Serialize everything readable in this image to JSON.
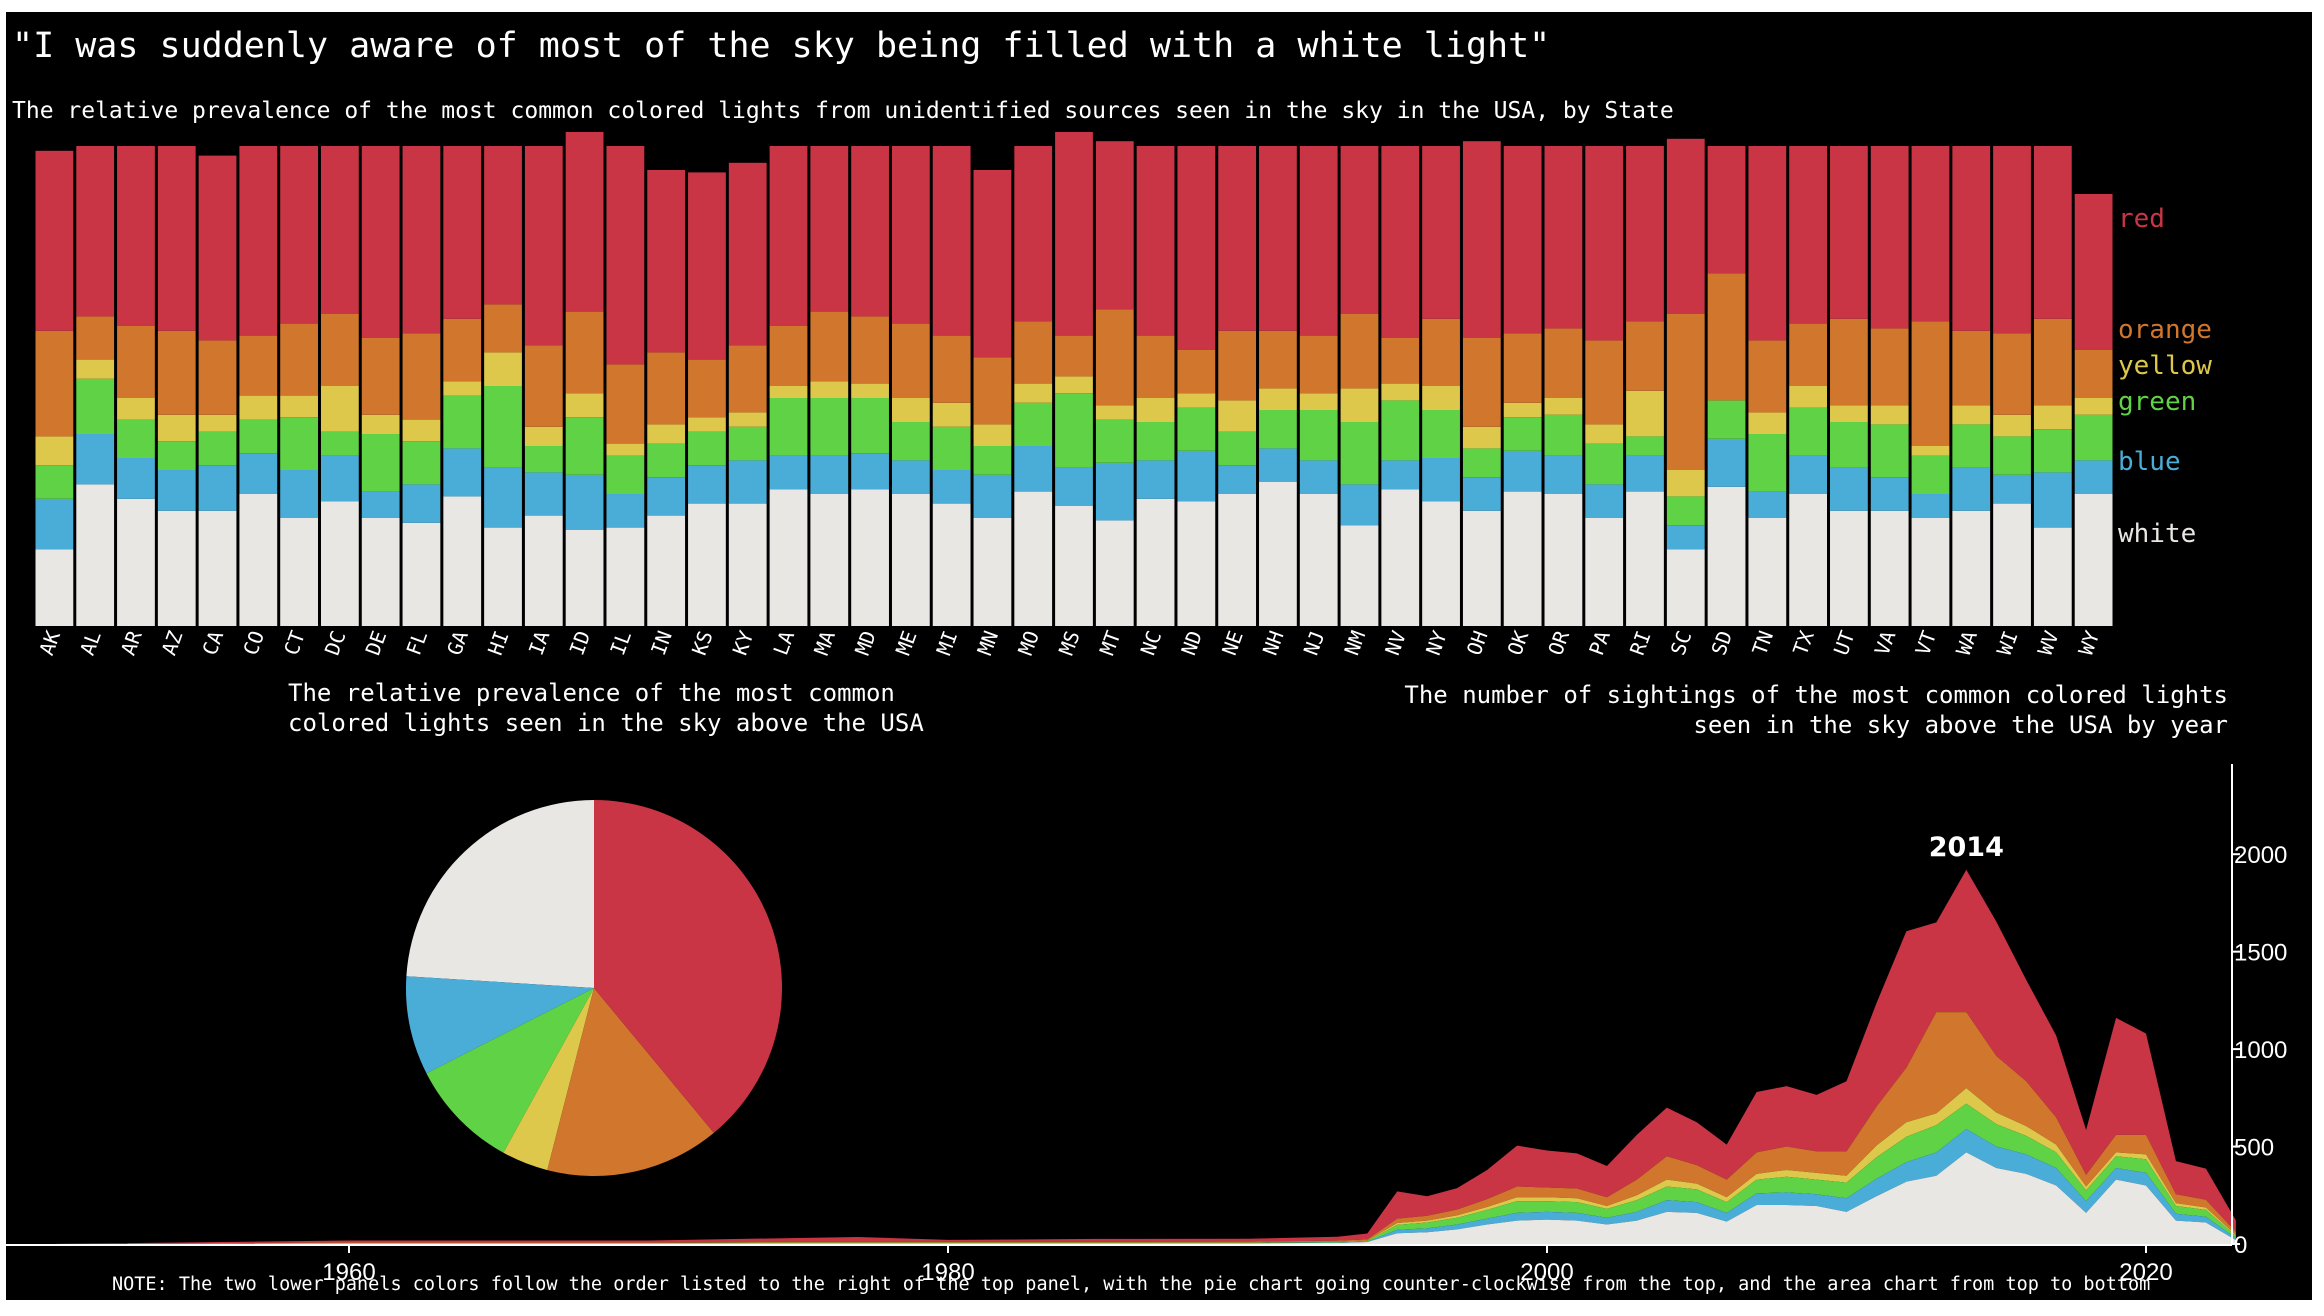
{
  "title": "\"I was suddenly aware of most of the sky being filled with a white light\"",
  "subtitle": "The relative prevalence of the most common colored lights from unidentified sources seen in the sky in the USA, by State",
  "pie_title_lines": [
    "The relative prevalence of the most common",
    "colored lights seen in the sky above the USA"
  ],
  "area_title_lines": [
    "The number of sightings of the most common colored lights",
    "seen in the sky above the USA by year"
  ],
  "note": "NOTE: The two lower panels colors follow the order listed to the right of the top panel, with the pie chart going counter-clockwise from the top, and the area chart from top to bottom",
  "colors": {
    "red": "#c93545",
    "orange": "#d0762d",
    "yellow": "#ddc84b",
    "green": "#5fd345",
    "blue": "#4aadd8",
    "white": "#e9e7e3"
  },
  "chart_data": [
    {
      "type": "bar",
      "stacked": "100%",
      "categories": [
        "AK",
        "AL",
        "AR",
        "AZ",
        "CA",
        "CO",
        "CT",
        "DC",
        "DE",
        "FL",
        "GA",
        "HI",
        "IA",
        "ID",
        "IL",
        "IN",
        "KS",
        "KY",
        "LA",
        "MA",
        "MD",
        "ME",
        "MI",
        "MN",
        "MO",
        "MS",
        "MT",
        "NC",
        "ND",
        "NE",
        "NH",
        "NJ",
        "NM",
        "NV",
        "NY",
        "OH",
        "OK",
        "OR",
        "PA",
        "RI",
        "SC",
        "SD",
        "TN",
        "TX",
        "UT",
        "VA",
        "VT",
        "WA",
        "WI",
        "WV",
        "WY"
      ],
      "series": [
        {
          "name": "red",
          "values": [
            37.5,
            35.5,
            37.5,
            38.5,
            38.5,
            39.5,
            37.0,
            35.0,
            40.0,
            39.0,
            36.0,
            33.0,
            41.5,
            37.5,
            45.5,
            38.0,
            39.0,
            38.0,
            37.5,
            34.5,
            35.5,
            37.0,
            39.5,
            39.0,
            36.5,
            43.5,
            35.0,
            39.5,
            42.5,
            38.5,
            38.5,
            39.5,
            35.0,
            40.0,
            36.0,
            41.0,
            39.0,
            38.0,
            40.5,
            36.5,
            36.5,
            26.5,
            40.5,
            37.0,
            36.0,
            38.0,
            36.5,
            38.5,
            39.0,
            36.0,
            32.5
          ]
        },
        {
          "name": "orange",
          "values": [
            22.0,
            9.0,
            15.0,
            17.5,
            15.5,
            12.5,
            15.0,
            15.0,
            16.0,
            18.0,
            13.0,
            10.0,
            17.0,
            17.0,
            16.5,
            15.0,
            12.0,
            14.0,
            12.5,
            14.5,
            14.0,
            15.5,
            14.0,
            14.0,
            13.0,
            8.5,
            20.0,
            13.0,
            9.0,
            14.5,
            12.0,
            12.0,
            15.5,
            9.5,
            14.0,
            18.5,
            14.5,
            14.5,
            17.5,
            14.5,
            32.5,
            26.5,
            15.0,
            13.0,
            18.0,
            16.0,
            26.0,
            15.5,
            17.0,
            18.0,
            10.0
          ]
        },
        {
          "name": "yellow",
          "values": [
            6.0,
            4.0,
            4.5,
            5.5,
            3.5,
            5.0,
            4.5,
            9.5,
            4.0,
            4.5,
            3.0,
            7.0,
            4.0,
            5.0,
            2.5,
            4.0,
            3.0,
            3.0,
            2.5,
            3.5,
            3.0,
            5.0,
            5.0,
            4.5,
            4.0,
            3.5,
            3.0,
            5.0,
            3.0,
            6.5,
            4.5,
            3.5,
            7.0,
            3.5,
            5.0,
            4.5,
            3.0,
            3.5,
            4.0,
            9.5,
            5.5,
            0.0,
            4.5,
            4.5,
            3.5,
            4.0,
            2.0,
            4.0,
            4.5,
            5.0,
            3.5
          ]
        },
        {
          "name": "green",
          "values": [
            7.0,
            11.5,
            8.0,
            6.0,
            7.0,
            7.0,
            11.0,
            5.0,
            12.0,
            9.0,
            11.0,
            17.0,
            5.5,
            12.0,
            8.0,
            7.0,
            7.0,
            7.0,
            12.0,
            12.0,
            11.5,
            8.0,
            9.0,
            6.0,
            9.0,
            15.5,
            9.0,
            8.0,
            9.0,
            7.0,
            8.0,
            10.5,
            13.0,
            12.5,
            10.0,
            6.0,
            7.0,
            8.5,
            8.5,
            4.0,
            6.0,
            8.0,
            12.0,
            10.0,
            9.5,
            11.0,
            8.0,
            9.0,
            8.0,
            9.0,
            9.5
          ]
        },
        {
          "name": "blue",
          "values": [
            10.5,
            10.5,
            8.5,
            8.5,
            9.5,
            8.5,
            10.0,
            9.5,
            5.5,
            8.0,
            10.0,
            12.5,
            9.0,
            11.5,
            7.0,
            8.0,
            8.0,
            9.0,
            7.0,
            8.0,
            7.5,
            7.0,
            7.0,
            9.0,
            9.5,
            8.0,
            12.0,
            8.0,
            10.5,
            6.0,
            7.0,
            7.0,
            8.5,
            6.0,
            9.0,
            7.0,
            8.5,
            8.0,
            7.0,
            7.5,
            5.0,
            10.0,
            5.5,
            8.0,
            9.0,
            7.0,
            5.0,
            9.0,
            6.0,
            11.5,
            7.0
          ]
        },
        {
          "name": "white",
          "values": [
            16.0,
            29.5,
            26.5,
            24.0,
            24.0,
            27.5,
            22.5,
            26.0,
            22.5,
            21.5,
            27.0,
            20.5,
            23.0,
            20.0,
            20.5,
            23.0,
            25.5,
            25.5,
            28.5,
            27.5,
            28.5,
            27.5,
            25.5,
            22.5,
            28.0,
            25.0,
            22.0,
            26.5,
            26.0,
            27.5,
            30.0,
            27.5,
            21.0,
            28.5,
            26.0,
            24.0,
            28.0,
            27.5,
            22.5,
            28.0,
            16.0,
            29.0,
            22.5,
            27.5,
            24.0,
            24.0,
            22.5,
            24.0,
            25.5,
            20.5,
            27.5
          ]
        }
      ],
      "legend": [
        "red",
        "orange",
        "yellow",
        "green",
        "blue",
        "white"
      ],
      "legend_placement": "right",
      "ylim": [
        0,
        100
      ]
    },
    {
      "type": "pie",
      "labels": [
        "white",
        "blue",
        "green",
        "yellow",
        "orange",
        "red"
      ],
      "values": [
        24.0,
        8.5,
        9.5,
        4.0,
        15.0,
        39.0
      ],
      "start": "top",
      "direction": "counter-clockwise"
    },
    {
      "type": "area",
      "stacked": true,
      "x": [
        1950,
        1960,
        1970,
        1975,
        1977,
        1980,
        1985,
        1990,
        1993,
        1994,
        1995,
        1996,
        1997,
        1998,
        1999,
        2000,
        2001,
        2002,
        2003,
        2004,
        2005,
        2006,
        2007,
        2008,
        2009,
        2010,
        2011,
        2012,
        2013,
        2014,
        2015,
        2016,
        2017,
        2018,
        2019,
        2020,
        2021,
        2022,
        2023
      ],
      "series": [
        {
          "name": "red",
          "values": [
            0,
            10,
            10,
            20,
            25,
            10,
            15,
            15,
            20,
            30,
            140,
            100,
            110,
            150,
            210,
            190,
            180,
            160,
            230,
            250,
            220,
            180,
            310,
            310,
            290,
            360,
            530,
            700,
            460,
            730,
            690,
            520,
            420,
            230,
            600,
            520,
            170,
            160,
            60
          ]
        },
        {
          "name": "orange",
          "values": [
            0,
            2,
            2,
            3,
            3,
            3,
            3,
            4,
            5,
            6,
            22,
            25,
            30,
            40,
            55,
            50,
            50,
            45,
            80,
            120,
            95,
            90,
            110,
            120,
            110,
            125,
            200,
            280,
            520,
            390,
            290,
            230,
            140,
            60,
            90,
            100,
            45,
            40,
            15
          ]
        },
        {
          "name": "yellow",
          "values": [
            0,
            1,
            1,
            1,
            1,
            1,
            1,
            1,
            1,
            2,
            10,
            10,
            12,
            15,
            20,
            20,
            20,
            15,
            25,
            35,
            30,
            25,
            30,
            35,
            35,
            35,
            60,
            75,
            60,
            80,
            60,
            50,
            40,
            20,
            20,
            25,
            15,
            12,
            5
          ]
        },
        {
          "name": "green",
          "values": [
            0,
            1,
            1,
            2,
            2,
            2,
            2,
            2,
            3,
            4,
            25,
            30,
            35,
            45,
            60,
            55,
            55,
            45,
            60,
            70,
            65,
            55,
            70,
            80,
            75,
            80,
            110,
            130,
            140,
            130,
            115,
            95,
            80,
            55,
            60,
            70,
            40,
            35,
            12
          ]
        },
        {
          "name": "blue",
          "values": [
            0,
            1,
            1,
            1,
            1,
            1,
            1,
            1,
            2,
            2,
            18,
            20,
            25,
            30,
            40,
            40,
            40,
            35,
            45,
            60,
            55,
            45,
            60,
            65,
            60,
            70,
            90,
            100,
            120,
            120,
            110,
            100,
            90,
            60,
            60,
            65,
            35,
            30,
            10
          ]
        },
        {
          "name": "white",
          "values": [
            0,
            3,
            3,
            4,
            4,
            4,
            4,
            4,
            6,
            10,
            55,
            60,
            75,
            100,
            120,
            125,
            120,
            100,
            120,
            165,
            160,
            115,
            200,
            200,
            195,
            165,
            245,
            320,
            350,
            470,
            390,
            360,
            300,
            160,
            330,
            300,
            120,
            110,
            20
          ]
        }
      ],
      "xlim": [
        1949,
        2014.5
      ],
      "x_ticks": [
        1960,
        1980,
        2000,
        2020
      ],
      "ylim": [
        0,
        2350
      ],
      "y_ticks": [
        0,
        500,
        1000,
        1500,
        2000
      ],
      "y_axis_side": "right",
      "annotation": {
        "x": 2014,
        "label": "2014"
      }
    }
  ]
}
